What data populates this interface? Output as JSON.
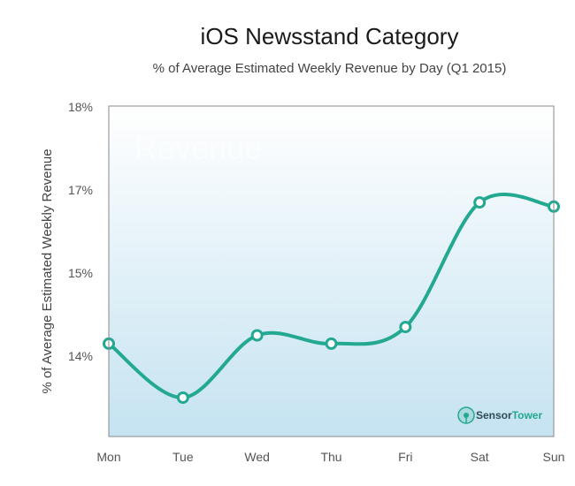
{
  "chart_data": {
    "type": "line",
    "title": "iOS Newsstand Category",
    "subtitle": "% of Average Estimated Weekly Revenue by Day (Q1 2015)",
    "xlabel": "",
    "ylabel": "% of Average Estimated Weekly Revenue",
    "categories": [
      "Mon",
      "Tue",
      "Wed",
      "Thu",
      "Fri",
      "Sat",
      "Sun"
    ],
    "y_ticks": [
      "14%",
      "15%",
      "17%",
      "18%"
    ],
    "series": [
      {
        "values": [
          14.15,
          13.5,
          14.25,
          14.15,
          14.35,
          16.7,
          16.6
        ]
      }
    ],
    "watermark": "Revenue",
    "brand": {
      "part1": "Sensor",
      "part2": "Tower"
    },
    "colors": {
      "line": "#23a891",
      "bg_top": "#ffffff",
      "bg_bottom": "#c5e3f1",
      "frame": "#888888",
      "brand_dark": "#2d4a5a",
      "brand_accent": "#23a891"
    }
  }
}
